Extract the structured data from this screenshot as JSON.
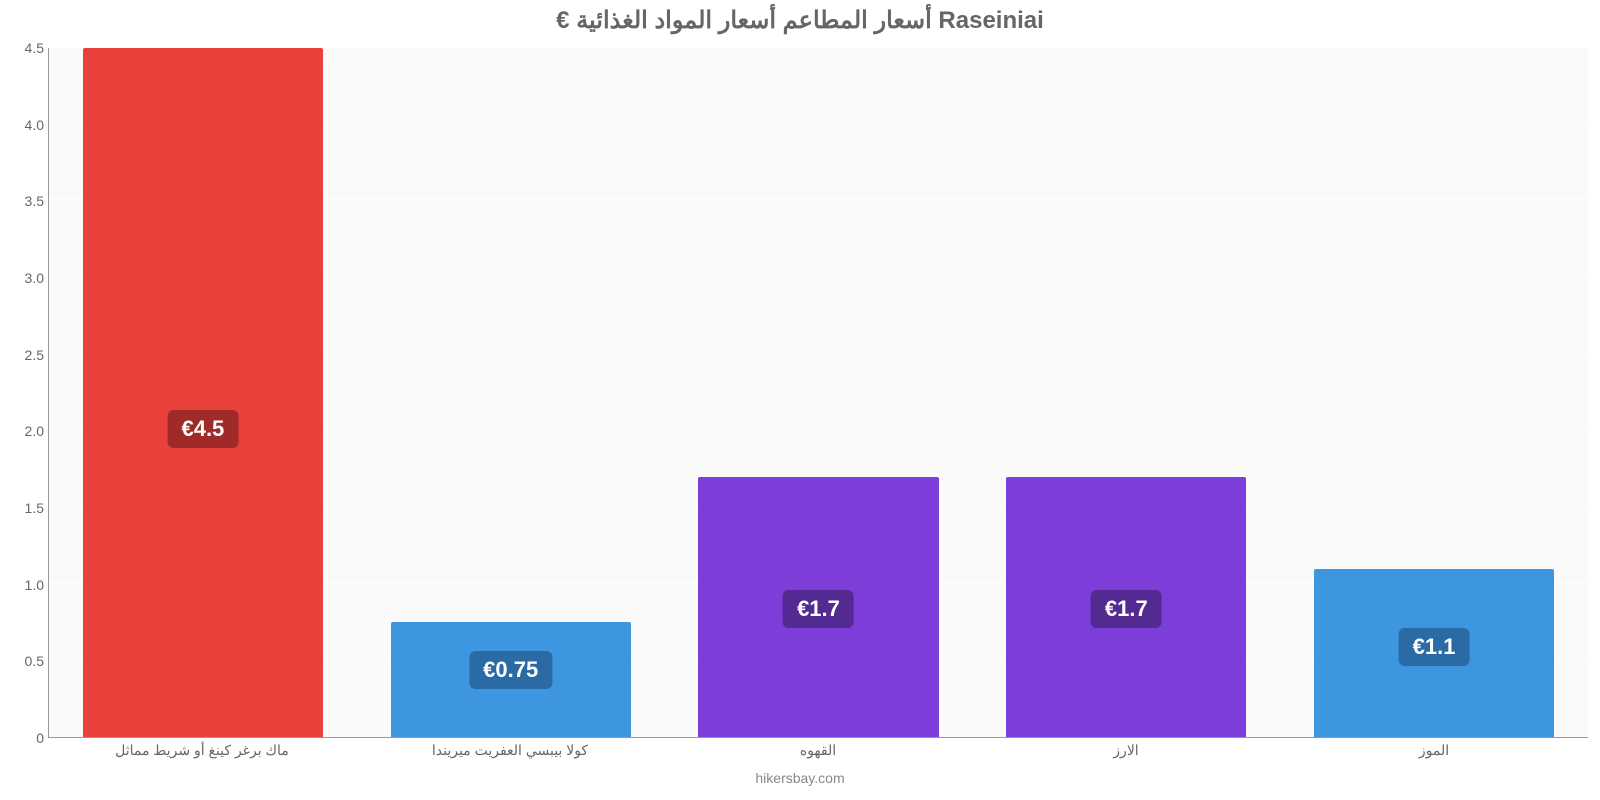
{
  "chart": {
    "type": "bar",
    "title": "€ أسعار المطاعم أسعار المواد الغذائية Raseiniai",
    "title_fontsize": 24,
    "title_color": "#666666",
    "credit": "hikersbay.com",
    "background_color": "#ffffff",
    "plot_background": "#fafafa",
    "grid_color": "#ffffff",
    "axis_color": "#999999",
    "tick_label_color": "#666666",
    "tick_fontsize": 14,
    "ylim": [
      0,
      4.5
    ],
    "ytick_step": 0.5,
    "yticks": [
      "0",
      "0.5",
      "1.0",
      "1.5",
      "2.0",
      "2.5",
      "3.0",
      "3.5",
      "4.0",
      "4.5"
    ],
    "bar_width": 0.78,
    "badge_fontsize": 22,
    "categories": [
      "ماك برغر كينغ أو شريط مماثل",
      "كولا بيبسي العفريت ميريندا",
      "القهوه",
      "الارز",
      "الموز"
    ],
    "values": [
      4.5,
      0.75,
      1.7,
      1.7,
      1.1
    ],
    "value_labels": [
      "€4.5",
      "€0.75",
      "€1.7",
      "€1.7",
      "€1.1"
    ],
    "bar_colors": [
      "#e8403b",
      "#3e95e0",
      "#7d3dd8",
      "#7d3dd8",
      "#3e95e0"
    ],
    "badge_colors": [
      "#a02a27",
      "#2a6ba5",
      "#522a92",
      "#522a92",
      "#2a6ba5"
    ]
  }
}
